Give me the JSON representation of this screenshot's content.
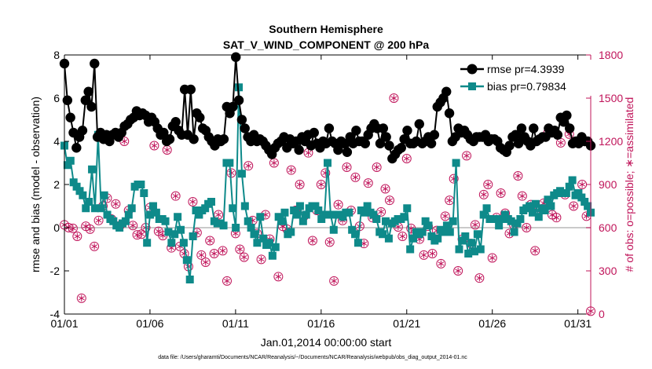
{
  "chart_data": {
    "type": "line",
    "title": [
      "Southern Hemisphere",
      "SAT_V_WIND_COMPONENT @ 200 hPa"
    ],
    "xlabel": "Jan.01,2014 00:00:00 start",
    "ylabel_left": "rmse and bias (model - observation)",
    "ylabel_right": "# of obs: o=possible; ∗=assimilated",
    "footnote": "data file: /Users/gharamti/Documents/NCAR/Reanalysis/~/Documents/NCAR/Reanalysis/webpub/obs_diag_output_2014-01.nc",
    "xlim": [
      0,
      30.75
    ],
    "ylim_left": [
      -4,
      8
    ],
    "ylim_right": [
      0,
      1800
    ],
    "x_ticks": [
      0,
      5,
      10,
      15,
      20,
      25,
      30
    ],
    "x_tick_labels": [
      "01/01",
      "01/06",
      "01/11",
      "01/16",
      "01/21",
      "01/26",
      "01/31"
    ],
    "y_ticks_left": [
      -4,
      -2,
      0,
      2,
      4,
      6,
      8
    ],
    "y_ticks_right": [
      0,
      300,
      600,
      900,
      1200,
      1500,
      1800
    ],
    "zero_line": 0,
    "grid": false,
    "legend_position": "top-right",
    "colors": {
      "rmse": "#000000",
      "bias": "#0e8a8a",
      "obs": "#c0145a",
      "zero": "#b8b8b8"
    },
    "series": [
      {
        "name": "rmse pr=4.3939",
        "axis": "left",
        "marker": "circle",
        "values": [
          7.6,
          5.9,
          5.1,
          4.4,
          3.7,
          4.2,
          4.5,
          5.9,
          6.3,
          5.6,
          7.6,
          4.2,
          4.4,
          4.1,
          4.3,
          4.0,
          4.3,
          4.4,
          4.2,
          4.4,
          4.7,
          4.8,
          5.0,
          5.1,
          5.4,
          5.2,
          5.3,
          5.2,
          4.9,
          5.1,
          4.9,
          4.6,
          4.3,
          4.4,
          4.0,
          4.1,
          4.7,
          4.9,
          4.5,
          4.3,
          6.4,
          4.3,
          6.4,
          4.1,
          5.3,
          5.1,
          4.6,
          4.5,
          4.2,
          4.0,
          3.8,
          4.1,
          4.0,
          4.1,
          5.6,
          5.3,
          5.6,
          7.9,
          5.9,
          5.0,
          4.6,
          4.2,
          4.0,
          4.3,
          4.0,
          4.1,
          4.0,
          3.8,
          3.6,
          3.4,
          3.7,
          3.9,
          4.0,
          4.2,
          3.7,
          4.1,
          3.9,
          4.0,
          3.6,
          4.2,
          4.0,
          4.3,
          3.8,
          4.4,
          3.9,
          3.7,
          4.0,
          3.9,
          4.6,
          4.0,
          3.9,
          3.6,
          4.0,
          3.9,
          3.5,
          4.2,
          3.9,
          4.5,
          4.0,
          4.0,
          3.9,
          4.3,
          4.6,
          4.8,
          4.6,
          3.9,
          4.6,
          4.2,
          3.8,
          3.2,
          3.4,
          3.6,
          3.7,
          4.1,
          4.5,
          3.9,
          3.9,
          4.0,
          4.8,
          3.9,
          4.0,
          4.2,
          3.9,
          4.3,
          5.6,
          5.8,
          6.0,
          6.3,
          5.3,
          4.0,
          4.2,
          4.6,
          4.4,
          4.5,
          4.3,
          4.1,
          4.0,
          4.2,
          4.2,
          4.2,
          4.3,
          4.0,
          4.1,
          4.1,
          4.0,
          3.7,
          3.6,
          3.5,
          3.8,
          4.2,
          4.3,
          3.9,
          4.6,
          4.2,
          4.0,
          3.8,
          4.6,
          4.0,
          4.1,
          4.2,
          4.2,
          4.6,
          4.4,
          4.5,
          4.3,
          5.1,
          4.9,
          5.2,
          4.6,
          3.9,
          4.0,
          3.9,
          4.2,
          4.0,
          4.0,
          3.8
        ]
      },
      {
        "name": "bias pr=0.79834",
        "axis": "left",
        "marker": "square",
        "values": [
          3.8,
          2.9,
          3.1,
          2.1,
          1.9,
          1.7,
          1.5,
          0.9,
          1.2,
          2.7,
          0.9,
          4.3,
          0.9,
          1.5,
          0.6,
          0.4,
          0.3,
          0.1,
          0.0,
          0.2,
          0.3,
          0.6,
          0.9,
          1.9,
          2.0,
          2.0,
          1.6,
          -0.7,
          0.6,
          1.0,
          0.7,
          0.4,
          0.4,
          0.3,
          -0.2,
          -0.7,
          -0.3,
          0.5,
          -0.1,
          -0.7,
          -1.5,
          -2.4,
          -0.4,
          0.8,
          0.6,
          0.8,
          0.9,
          1.1,
          1.2,
          0.3,
          0.2,
          0.2,
          0.1,
          3.0,
          3.0,
          0.9,
          0.0,
          6.5,
          2.5,
          1.0,
          0.3,
          0.0,
          -0.3,
          -0.7,
          0.5,
          -0.5,
          -0.8,
          -0.7,
          -1.3,
          -0.9,
          0.5,
          0.3,
          0.7,
          -0.3,
          -0.2,
          0.8,
          0.6,
          1.0,
          0.3,
          0.6,
          0.9,
          1.0,
          1.0,
          0.8,
          0.4,
          0.6,
          3.0,
          0.6,
          -0.1,
          0.6,
          0.6,
          0.5,
          0.7,
          0.7,
          -0.1,
          -0.3,
          -0.7,
          0.8,
          0.7,
          1.0,
          0.7,
          0.6,
          0.4,
          -0.2,
          -0.3,
          0.3,
          -0.5,
          0.2,
          0.3,
          0.4,
          0.4,
          0.5,
          0.9,
          -1.0,
          -0.5,
          -0.2,
          -0.3,
          -0.2,
          0.3,
          0.1,
          -0.4,
          -0.6,
          -0.5,
          -0.1,
          -0.2,
          0.1,
          -0.2,
          0.3,
          3.0,
          -1.0,
          -0.6,
          -0.4,
          -1.2,
          -0.7,
          -1.1,
          -0.3,
          -1.0,
          0.6,
          0.9,
          0.4,
          0.4,
          0.4,
          0.1,
          0.4,
          0.6,
          0.4,
          0.3,
          -0.2,
          0.2,
          0.4,
          0.8,
          0.9,
          1.0,
          0.7,
          1.1,
          0.5,
          0.9,
          0.8,
          1.3,
          1.0,
          1.5,
          1.6,
          1.7,
          1.6,
          1.6,
          1.9,
          2.2,
          1.5,
          1.6,
          1.4,
          1.2,
          1.0,
          0.7
        ]
      }
    ],
    "obs_possible": {
      "marker": "circle",
      "axis": "right",
      "points": [
        [
          0.0,
          620
        ],
        [
          0.25,
          600
        ],
        [
          0.5,
          595
        ],
        [
          0.75,
          540
        ],
        [
          1.0,
          110
        ],
        [
          1.25,
          610
        ],
        [
          1.5,
          590
        ],
        [
          1.75,
          470
        ],
        [
          2.0,
          650
        ],
        [
          2.25,
          750
        ],
        [
          2.5,
          805
        ],
        [
          2.75,
          660
        ],
        [
          3.0,
          765
        ],
        [
          3.25,
          615
        ],
        [
          3.5,
          1200
        ],
        [
          3.75,
          720
        ],
        [
          4.0,
          615
        ],
        [
          4.25,
          550
        ],
        [
          4.5,
          555
        ],
        [
          4.75,
          600
        ],
        [
          5.0,
          740
        ],
        [
          5.25,
          1170
        ],
        [
          5.5,
          575
        ],
        [
          5.75,
          545
        ],
        [
          6.0,
          1140
        ],
        [
          6.25,
          460
        ],
        [
          6.5,
          820
        ],
        [
          6.75,
          470
        ],
        [
          7.0,
          420
        ],
        [
          7.25,
          330
        ],
        [
          7.5,
          780
        ],
        [
          7.75,
          565
        ],
        [
          8.0,
          410
        ],
        [
          8.25,
          360
        ],
        [
          8.5,
          510
        ],
        [
          8.75,
          420
        ],
        [
          9.0,
          690
        ],
        [
          9.25,
          440
        ],
        [
          9.5,
          230
        ],
        [
          9.75,
          980
        ],
        [
          10.0,
          560
        ],
        [
          10.25,
          450
        ],
        [
          10.5,
          395
        ],
        [
          10.75,
          1030
        ],
        [
          11.0,
          650
        ],
        [
          11.25,
          560
        ],
        [
          11.5,
          380
        ],
        [
          11.75,
          690
        ],
        [
          12.0,
          520
        ],
        [
          12.25,
          1050
        ],
        [
          12.5,
          260
        ],
        [
          12.75,
          610
        ],
        [
          13.0,
          590
        ],
        [
          13.25,
          1000
        ],
        [
          13.5,
          720
        ],
        [
          13.75,
          900
        ],
        [
          14.0,
          680
        ],
        [
          14.25,
          1120
        ],
        [
          14.5,
          510
        ],
        [
          14.75,
          720
        ],
        [
          15.0,
          900
        ],
        [
          15.25,
          980
        ],
        [
          15.5,
          500
        ],
        [
          15.75,
          230
        ],
        [
          16.0,
          760
        ],
        [
          16.25,
          650
        ],
        [
          16.5,
          1020
        ],
        [
          16.75,
          720
        ],
        [
          17.0,
          950
        ],
        [
          17.25,
          610
        ],
        [
          17.5,
          490
        ],
        [
          17.75,
          910
        ],
        [
          18.0,
          670
        ],
        [
          18.25,
          1020
        ],
        [
          18.5,
          710
        ],
        [
          18.75,
          870
        ],
        [
          19.0,
          790
        ],
        [
          19.25,
          1500
        ],
        [
          19.5,
          605
        ],
        [
          19.75,
          540
        ],
        [
          20.0,
          1080
        ],
        [
          20.25,
          595
        ],
        [
          20.5,
          560
        ],
        [
          20.75,
          520
        ],
        [
          21.0,
          410
        ],
        [
          21.25,
          610
        ],
        [
          21.5,
          420
        ],
        [
          21.75,
          580
        ],
        [
          22.0,
          350
        ],
        [
          22.25,
          680
        ],
        [
          22.5,
          790
        ],
        [
          22.75,
          940
        ],
        [
          23.0,
          300
        ],
        [
          23.25,
          520
        ],
        [
          23.5,
          1100
        ],
        [
          23.75,
          490
        ],
        [
          24.0,
          620
        ],
        [
          24.25,
          250
        ],
        [
          24.5,
          830
        ],
        [
          24.75,
          900
        ],
        [
          25.0,
          390
        ],
        [
          25.25,
          670
        ],
        [
          25.5,
          840
        ],
        [
          25.75,
          700
        ],
        [
          26.0,
          560
        ],
        [
          26.25,
          620
        ],
        [
          26.5,
          960
        ],
        [
          26.75,
          820
        ],
        [
          27.0,
          600
        ],
        [
          27.25,
          760
        ],
        [
          27.5,
          440
        ],
        [
          27.75,
          720
        ],
        [
          28.0,
          770
        ],
        [
          28.25,
          1260
        ],
        [
          28.5,
          690
        ],
        [
          28.75,
          670
        ],
        [
          29.0,
          1190
        ],
        [
          29.25,
          830
        ],
        [
          29.5,
          1250
        ],
        [
          29.75,
          750
        ],
        [
          30.0,
          1660
        ],
        [
          30.25,
          900
        ],
        [
          30.5,
          680
        ],
        [
          30.75,
          20
        ]
      ]
    },
    "obs_assimilated": {
      "marker": "asterisk",
      "axis": "right",
      "points": [
        [
          0.0,
          620
        ],
        [
          0.25,
          600
        ],
        [
          0.5,
          595
        ],
        [
          0.75,
          540
        ],
        [
          1.0,
          110
        ],
        [
          1.25,
          610
        ],
        [
          1.5,
          590
        ],
        [
          1.75,
          470
        ],
        [
          2.0,
          650
        ],
        [
          2.25,
          750
        ],
        [
          2.5,
          805
        ],
        [
          2.75,
          660
        ],
        [
          3.0,
          765
        ],
        [
          3.25,
          615
        ],
        [
          3.5,
          1200
        ],
        [
          3.75,
          720
        ],
        [
          4.0,
          615
        ],
        [
          4.25,
          550
        ],
        [
          4.5,
          555
        ],
        [
          4.75,
          600
        ],
        [
          5.0,
          740
        ],
        [
          5.25,
          1170
        ],
        [
          5.5,
          575
        ],
        [
          5.75,
          545
        ],
        [
          6.0,
          1140
        ],
        [
          6.25,
          460
        ],
        [
          6.5,
          820
        ],
        [
          6.75,
          470
        ],
        [
          7.0,
          420
        ],
        [
          7.25,
          330
        ],
        [
          7.5,
          780
        ],
        [
          7.75,
          565
        ],
        [
          8.0,
          410
        ],
        [
          8.25,
          360
        ],
        [
          8.5,
          510
        ],
        [
          8.75,
          420
        ],
        [
          9.0,
          690
        ],
        [
          9.25,
          440
        ],
        [
          9.5,
          230
        ],
        [
          9.75,
          980
        ],
        [
          10.0,
          560
        ],
        [
          10.25,
          450
        ],
        [
          10.5,
          395
        ],
        [
          10.75,
          1030
        ],
        [
          11.0,
          650
        ],
        [
          11.25,
          560
        ],
        [
          11.5,
          380
        ],
        [
          11.75,
          690
        ],
        [
          12.0,
          520
        ],
        [
          12.25,
          1050
        ],
        [
          12.5,
          260
        ],
        [
          12.75,
          610
        ],
        [
          13.0,
          590
        ],
        [
          13.25,
          1000
        ],
        [
          13.5,
          720
        ],
        [
          13.75,
          900
        ],
        [
          14.0,
          680
        ],
        [
          14.25,
          1120
        ],
        [
          14.5,
          510
        ],
        [
          14.75,
          720
        ],
        [
          15.0,
          900
        ],
        [
          15.25,
          980
        ],
        [
          15.5,
          500
        ],
        [
          15.75,
          230
        ],
        [
          16.0,
          760
        ],
        [
          16.25,
          650
        ],
        [
          16.5,
          1020
        ],
        [
          16.75,
          720
        ],
        [
          17.0,
          950
        ],
        [
          17.25,
          610
        ],
        [
          17.5,
          490
        ],
        [
          17.75,
          910
        ],
        [
          18.0,
          670
        ],
        [
          18.25,
          1020
        ],
        [
          18.5,
          710
        ],
        [
          18.75,
          870
        ],
        [
          19.0,
          790
        ],
        [
          19.25,
          1500
        ],
        [
          19.5,
          605
        ],
        [
          19.75,
          540
        ],
        [
          20.0,
          1080
        ],
        [
          20.25,
          595
        ],
        [
          20.5,
          560
        ],
        [
          20.75,
          520
        ],
        [
          21.0,
          410
        ],
        [
          21.25,
          610
        ],
        [
          21.5,
          420
        ],
        [
          21.75,
          580
        ],
        [
          22.0,
          350
        ],
        [
          22.25,
          680
        ],
        [
          22.5,
          790
        ],
        [
          22.75,
          940
        ],
        [
          23.0,
          300
        ],
        [
          23.25,
          520
        ],
        [
          23.5,
          1100
        ],
        [
          23.75,
          490
        ],
        [
          24.0,
          620
        ],
        [
          24.25,
          250
        ],
        [
          24.5,
          830
        ],
        [
          24.75,
          900
        ],
        [
          25.0,
          390
        ],
        [
          25.25,
          670
        ],
        [
          25.5,
          840
        ],
        [
          25.75,
          700
        ],
        [
          26.0,
          560
        ],
        [
          26.25,
          620
        ],
        [
          26.5,
          960
        ],
        [
          26.75,
          820
        ],
        [
          27.0,
          600
        ],
        [
          27.25,
          760
        ],
        [
          27.5,
          440
        ],
        [
          27.75,
          720
        ],
        [
          28.0,
          770
        ],
        [
          28.25,
          1260
        ],
        [
          28.5,
          690
        ],
        [
          28.75,
          670
        ],
        [
          29.0,
          1190
        ],
        [
          29.25,
          830
        ],
        [
          29.5,
          1250
        ],
        [
          29.75,
          750
        ],
        [
          30.0,
          1660
        ],
        [
          30.25,
          900
        ],
        [
          30.5,
          680
        ],
        [
          30.75,
          20
        ]
      ]
    }
  }
}
